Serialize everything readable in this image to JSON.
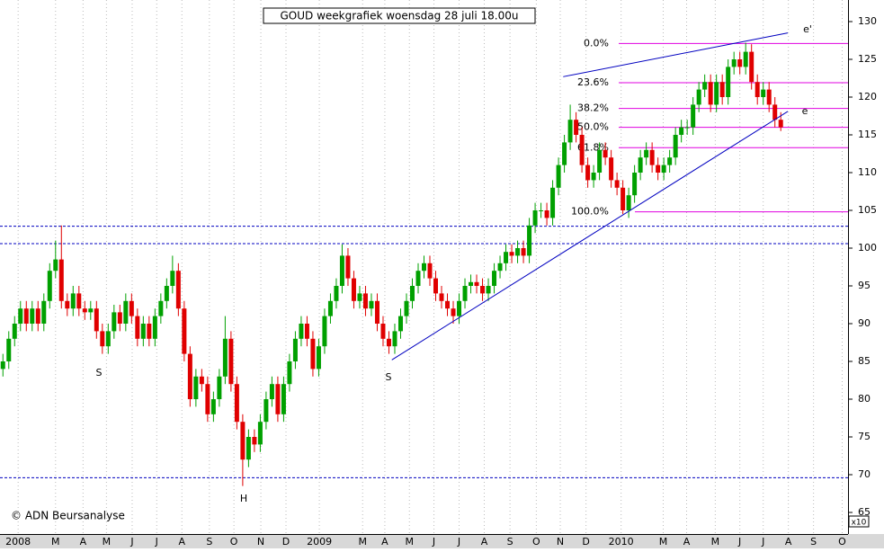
{
  "chart_data": {
    "type": "candlestick",
    "title": "GOUD weekgrafiek woensdag 28 juli 18.00u",
    "copyright": "© ADN Beursanalyse",
    "y_multiplier": "x10",
    "up_color": "#00a000",
    "down_color": "#e00000",
    "ylim": [
      65,
      130
    ],
    "yticks": [
      65,
      70,
      75,
      80,
      85,
      90,
      95,
      100,
      105,
      110,
      115,
      120,
      125,
      130
    ],
    "xlim": [
      -0.5,
      144.5
    ],
    "xticks": [
      {
        "value": 2.6,
        "label": "2008"
      },
      {
        "value": 9.0,
        "label": "M"
      },
      {
        "value": 13.7,
        "label": "A"
      },
      {
        "value": 17.7,
        "label": "M"
      },
      {
        "value": 22.1,
        "label": "J"
      },
      {
        "value": 26.3,
        "label": "J"
      },
      {
        "value": 30.6,
        "label": "A"
      },
      {
        "value": 35.3,
        "label": "S"
      },
      {
        "value": 39.5,
        "label": "O"
      },
      {
        "value": 44.1,
        "label": "N"
      },
      {
        "value": 48.4,
        "label": "D"
      },
      {
        "value": 54.1,
        "label": "2009"
      },
      {
        "value": 61.5,
        "label": "M"
      },
      {
        "value": 65.3,
        "label": "A"
      },
      {
        "value": 69.5,
        "label": "M"
      },
      {
        "value": 73.7,
        "label": "J"
      },
      {
        "value": 78.0,
        "label": "J"
      },
      {
        "value": 82.3,
        "label": "A"
      },
      {
        "value": 86.7,
        "label": "S"
      },
      {
        "value": 91.2,
        "label": "O"
      },
      {
        "value": 95.3,
        "label": "N"
      },
      {
        "value": 99.7,
        "label": "D"
      },
      {
        "value": 105.7,
        "label": "2010"
      },
      {
        "value": 112.9,
        "label": "M"
      },
      {
        "value": 116.9,
        "label": "A"
      },
      {
        "value": 121.8,
        "label": "M"
      },
      {
        "value": 126.0,
        "label": "J"
      },
      {
        "value": 130.0,
        "label": "J"
      },
      {
        "value": 134.3,
        "label": "A"
      },
      {
        "value": 138.6,
        "label": "S"
      },
      {
        "value": 143.5,
        "label": "O"
      }
    ],
    "open": [
      84,
      85,
      88,
      90,
      92,
      90,
      92,
      90,
      93,
      97,
      98.5,
      93,
      92,
      94,
      92,
      91.5,
      92,
      89,
      87,
      89,
      91.5,
      90,
      93,
      91,
      88,
      90,
      88,
      91,
      93,
      95,
      97,
      92,
      86,
      80,
      83,
      82,
      78,
      80,
      83,
      88,
      82,
      77,
      72,
      75,
      74,
      77,
      80,
      82,
      78,
      82,
      85,
      88,
      90,
      88,
      84,
      87,
      91,
      93,
      95,
      99,
      96,
      93,
      94,
      92,
      93,
      90,
      88,
      87,
      89,
      91,
      93,
      95,
      97,
      98,
      96,
      94,
      93,
      92,
      91,
      93,
      95,
      95.5,
      95,
      94,
      95,
      97,
      98,
      99.5,
      99,
      100,
      99,
      103,
      105,
      105,
      104,
      108,
      111,
      114,
      117,
      115,
      111,
      109,
      110,
      113,
      112,
      109,
      108,
      105,
      107,
      110,
      112,
      113,
      111,
      110,
      111,
      112,
      115,
      116,
      116,
      119,
      121,
      122,
      119,
      122,
      120,
      124,
      125,
      124,
      126,
      122,
      120,
      121,
      119,
      117
    ],
    "high": [
      86,
      89,
      91,
      93,
      93,
      93,
      93,
      94,
      98,
      101,
      103,
      94,
      95,
      95,
      93,
      93,
      93,
      90,
      90,
      92.5,
      92.5,
      94,
      94,
      92,
      91,
      91,
      92,
      94,
      96,
      99,
      98,
      93,
      87,
      84,
      84,
      83,
      81,
      84,
      91,
      89,
      83,
      78,
      76,
      76,
      78,
      81,
      83,
      83,
      83,
      86,
      89,
      91,
      91,
      89,
      88,
      92,
      94,
      96,
      100.5,
      100,
      97,
      95,
      95,
      94,
      94,
      91,
      89,
      90,
      92,
      94,
      96,
      98,
      99,
      99,
      97,
      95,
      94,
      93,
      94,
      96,
      96.5,
      96.5,
      96,
      96,
      98,
      99,
      100.5,
      100.5,
      101,
      101,
      104,
      106,
      106,
      106,
      109,
      112,
      115,
      119,
      118,
      116,
      112,
      111,
      114,
      114,
      113,
      110,
      109,
      108,
      111,
      113,
      114,
      114,
      112,
      112,
      113,
      116,
      117,
      117,
      120,
      122,
      123,
      123,
      123,
      123,
      125,
      126,
      126,
      127.2,
      127,
      123,
      122,
      122,
      120,
      118
    ],
    "low": [
      83,
      84,
      87,
      89,
      89,
      89,
      89,
      89,
      92,
      96,
      92,
      91,
      91,
      91,
      90.5,
      90.5,
      88,
      86,
      86,
      88,
      89,
      89,
      90,
      87,
      87,
      87,
      87,
      90,
      92,
      94,
      91,
      85,
      79,
      79,
      81,
      77,
      77,
      79,
      82,
      81,
      76,
      68.5,
      71,
      73,
      73,
      76,
      79,
      77,
      77,
      81,
      84,
      87,
      87,
      83,
      83,
      86,
      90,
      92,
      94,
      95,
      92,
      92,
      91,
      91,
      89,
      87,
      86,
      86,
      88,
      90,
      92,
      94,
      96,
      95,
      93,
      92,
      91,
      90,
      90,
      92,
      94,
      94,
      93,
      93,
      94,
      96,
      97,
      98,
      98,
      98,
      98,
      102,
      104,
      103,
      103,
      107,
      110,
      113,
      114,
      110,
      108,
      108,
      109,
      111,
      108,
      107,
      104.5,
      104,
      106,
      109,
      111,
      110,
      109,
      109,
      110,
      111,
      114,
      115,
      115,
      118,
      120,
      118,
      118,
      119,
      119,
      123,
      123,
      123,
      121,
      119,
      119,
      118,
      116,
      115.5
    ],
    "close": [
      85,
      88,
      90,
      92,
      90,
      92,
      90,
      93,
      97,
      98.5,
      93,
      92,
      94,
      92,
      91.5,
      92,
      89,
      87,
      89,
      91.5,
      90,
      93,
      91,
      88,
      90,
      88,
      91,
      93,
      95,
      97,
      92,
      86,
      80,
      83,
      82,
      78,
      80,
      83,
      88,
      82,
      77,
      72,
      75,
      74,
      77,
      80,
      82,
      78,
      82,
      85,
      88,
      90,
      88,
      84,
      87,
      91,
      93,
      95,
      99,
      96,
      93,
      94,
      92,
      93,
      90,
      88,
      87,
      89,
      91,
      93,
      95,
      97,
      98,
      96,
      94,
      93,
      92,
      91,
      93,
      95,
      95.5,
      95,
      94,
      95,
      97,
      98,
      99.5,
      99,
      100,
      99,
      103,
      105,
      105,
      104,
      108,
      111,
      114,
      117,
      115,
      111,
      109,
      110,
      113,
      112,
      109,
      108,
      105,
      107,
      110,
      112,
      113,
      111,
      110,
      111,
      112,
      115,
      116,
      116,
      119,
      121,
      122,
      119,
      122,
      120,
      124,
      125,
      124,
      126,
      122,
      120,
      121,
      119,
      117,
      116
    ],
    "hlines": [
      {
        "value": 102.9,
        "color": "#0000c0"
      },
      {
        "value": 100.6,
        "color": "#0000c0"
      },
      {
        "value": 69.6,
        "color": "#0000c0"
      }
    ],
    "fib_color": "#e000e0",
    "fib_levels": [
      {
        "value": 127.1,
        "label": "0.0%"
      },
      {
        "value": 121.9,
        "label": "23.6%"
      },
      {
        "value": 118.5,
        "label": "38.2%"
      },
      {
        "value": 116.0,
        "label": "50.0%"
      },
      {
        "value": 113.3,
        "label": "61.8%"
      },
      {
        "value": 104.8,
        "label": "100.0%"
      }
    ],
    "trendlines": [
      {
        "x": [
          66.5,
          134.2
        ],
        "y": [
          85.2,
          118.1
        ],
        "color": "#0000c0"
      },
      {
        "x": [
          95.8,
          134.2
        ],
        "y": [
          122.7,
          128.5
        ],
        "color": "#0000c0"
      }
    ],
    "annotations": [
      "S",
      "S",
      "H",
      "e",
      "e'"
    ]
  }
}
